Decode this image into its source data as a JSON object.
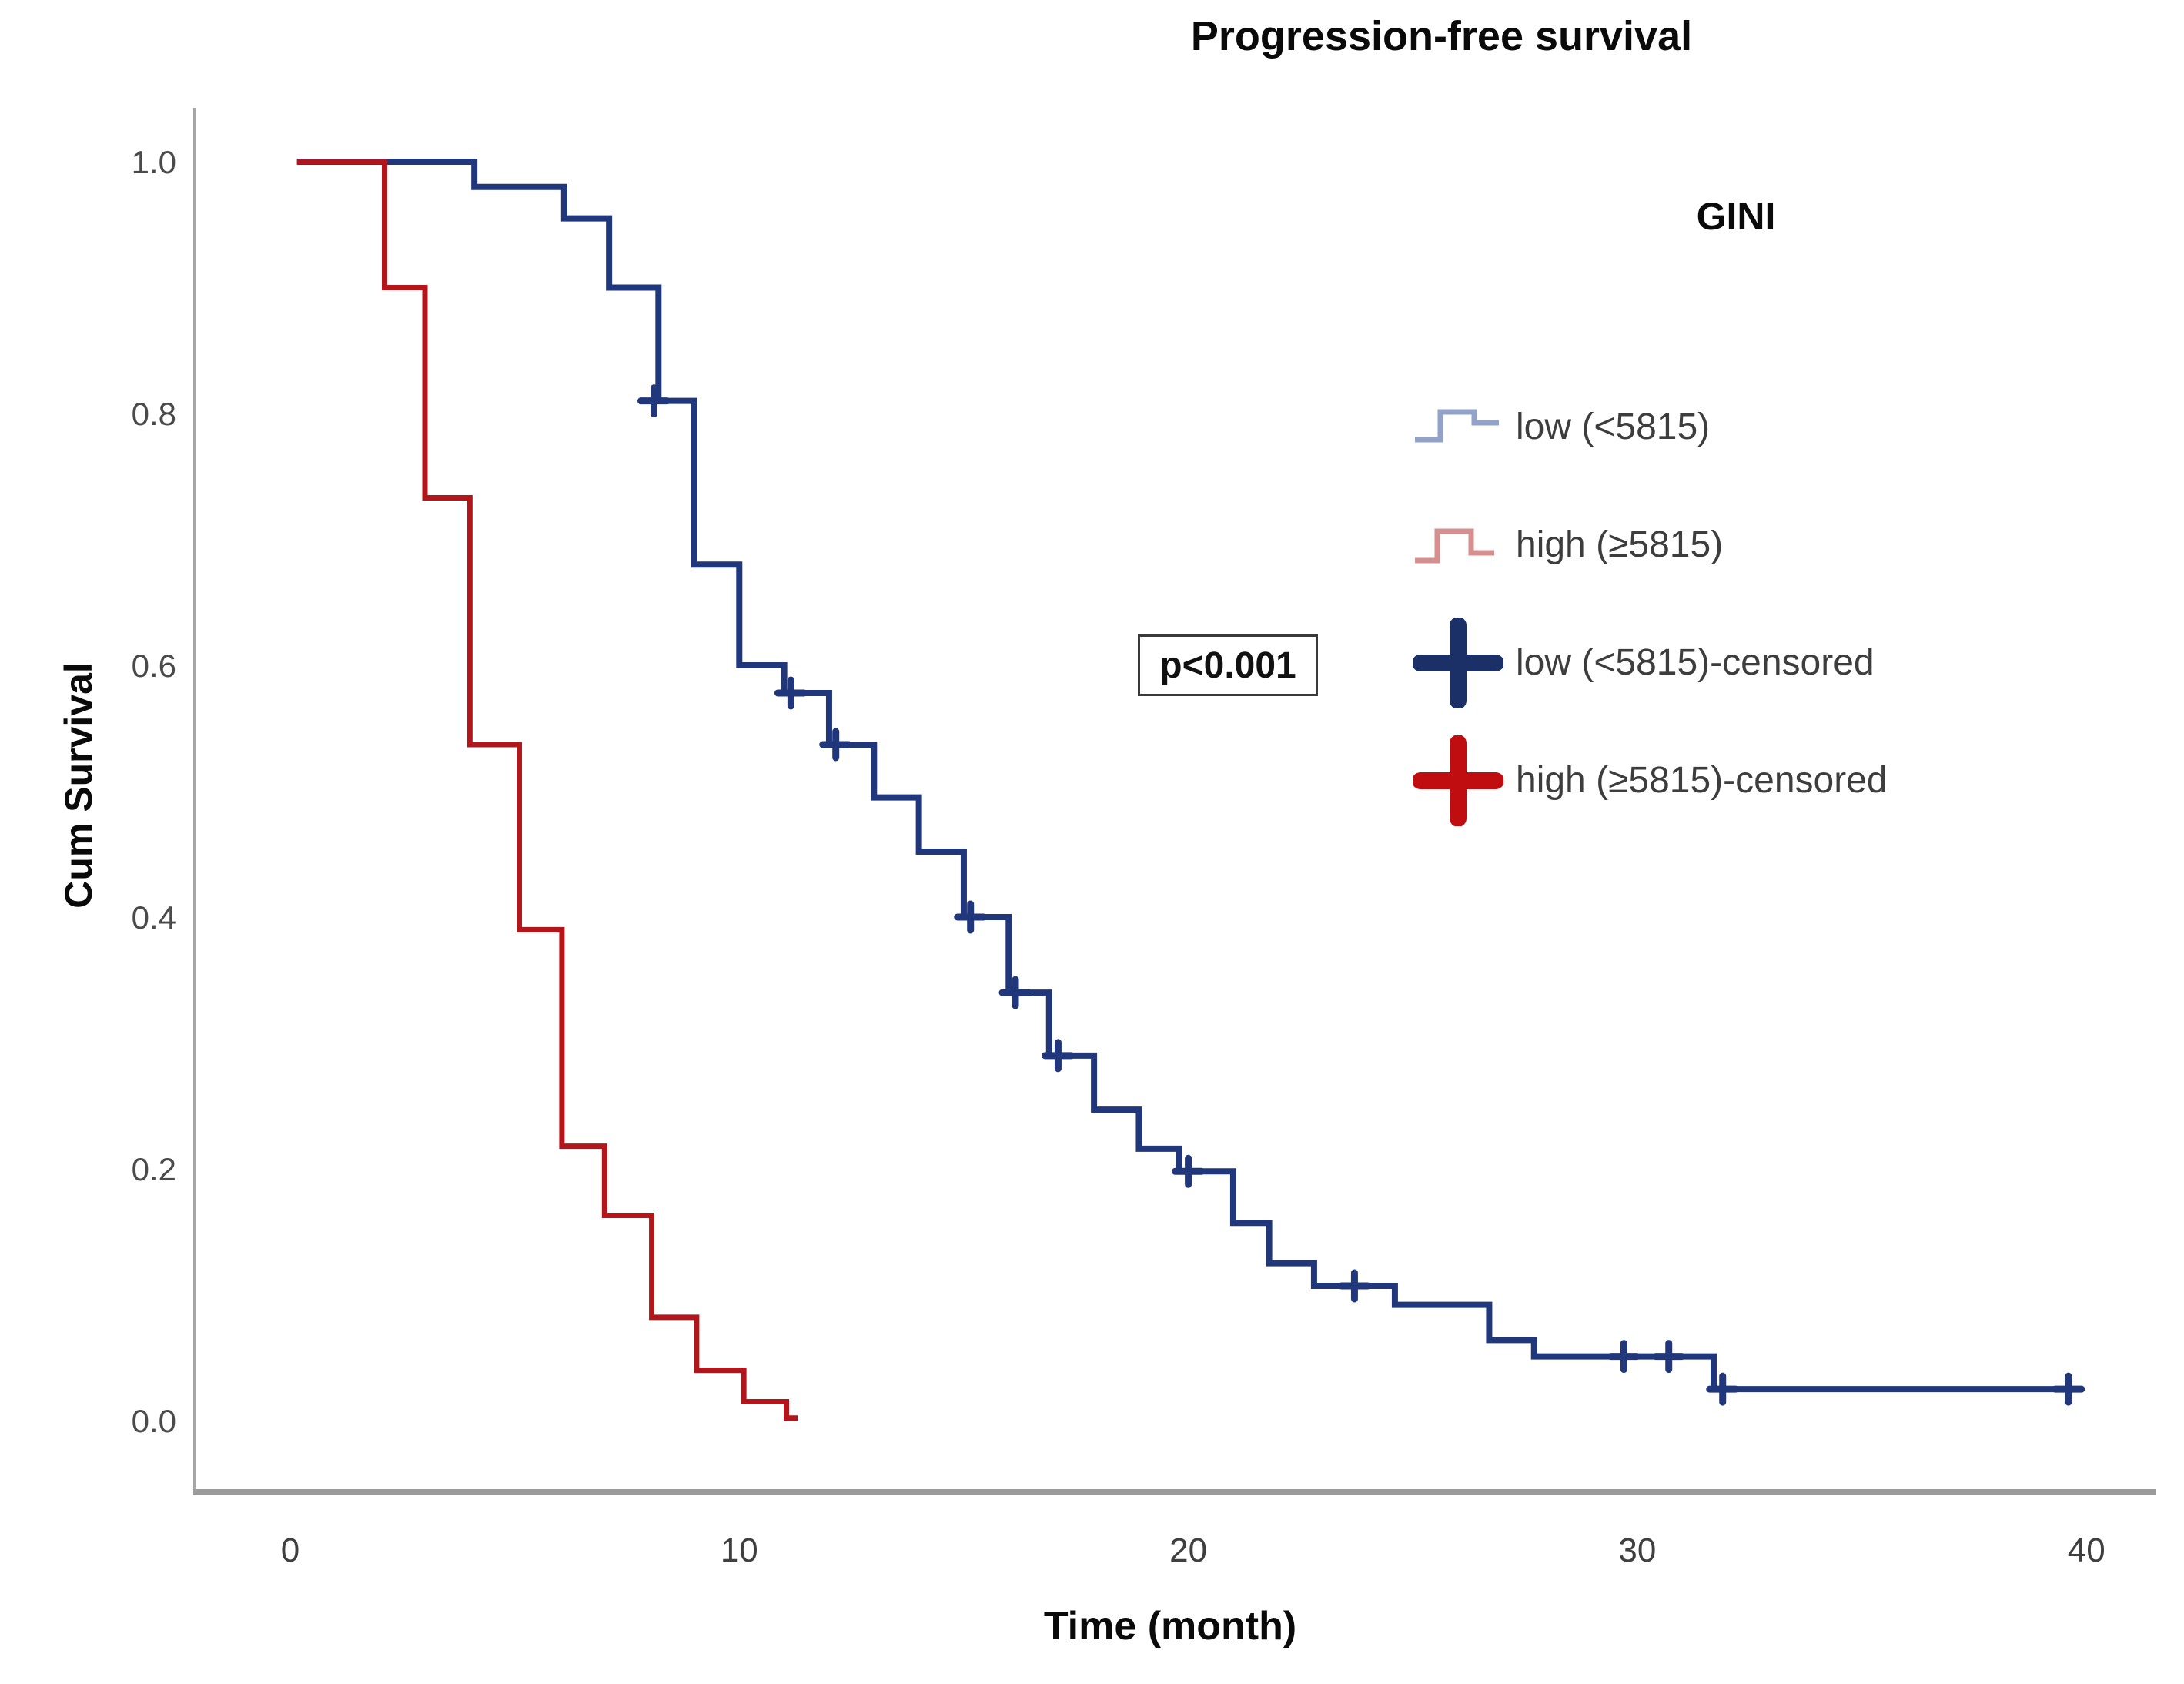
{
  "title": "Progression-free survival",
  "axes": {
    "y_label": "Cum Survival",
    "x_label": "Time (month)",
    "y_ticks": [
      {
        "label": "1.0",
        "value": 1.0
      },
      {
        "label": "0.8",
        "value": 0.8
      },
      {
        "label": "0.6",
        "value": 0.6
      },
      {
        "label": "0.4",
        "value": 0.4
      },
      {
        "label": "0.2",
        "value": 0.2
      },
      {
        "label": "0.0",
        "value": 0.0
      }
    ],
    "x_ticks": [
      {
        "label": "0",
        "value": 0
      },
      {
        "label": "10",
        "value": 10
      },
      {
        "label": "20",
        "value": 20
      },
      {
        "label": "30",
        "value": 30
      },
      {
        "label": "40",
        "value": 40
      }
    ]
  },
  "annotation": {
    "p_value": "p<0.001"
  },
  "legend": {
    "title": "GINI",
    "items": [
      {
        "label": "low (<5815)",
        "symbol": "step",
        "color": "#93a2c8"
      },
      {
        "label": "high (≥5815)",
        "symbol": "step",
        "color": "#d58f8e"
      },
      {
        "label": "low (<5815)-censored",
        "symbol": "plus",
        "color": "#1c3068"
      },
      {
        "label": "high (≥5815)-censored",
        "symbol": "plus",
        "color": "#c00d10"
      }
    ]
  },
  "colors": {
    "low_curve": "#21377b",
    "high_curve": "#b2161a",
    "axis": "#9b9b9b"
  },
  "chart_data": {
    "type": "line",
    "subtype": "kaplan_meier_step",
    "title": "Progression-free survival",
    "xlabel": "Time (month)",
    "ylabel": "Cum Survival",
    "xlim": [
      0,
      41.5
    ],
    "ylim": [
      0.0,
      1.0
    ],
    "grid": false,
    "legend_position": "upper right",
    "series": [
      {
        "name": "low (<5815)",
        "color": "#21377b",
        "start_t": 0.15,
        "start_level": 1.0,
        "drops": [
          [
            4.1,
            0.98
          ],
          [
            6.1,
            0.955
          ],
          [
            7.1,
            0.9
          ],
          [
            8.2,
            0.81
          ],
          [
            9.0,
            0.68
          ],
          [
            10.0,
            0.6
          ],
          [
            11.0,
            0.578
          ],
          [
            12.0,
            0.537
          ],
          [
            13.0,
            0.495
          ],
          [
            14.0,
            0.452
          ],
          [
            15.0,
            0.4
          ],
          [
            16.0,
            0.34
          ],
          [
            16.9,
            0.29
          ],
          [
            17.9,
            0.247
          ],
          [
            18.9,
            0.216
          ],
          [
            19.8,
            0.198
          ],
          [
            21.0,
            0.157
          ],
          [
            21.8,
            0.125
          ],
          [
            22.8,
            0.107
          ],
          [
            24.6,
            0.092
          ],
          [
            26.7,
            0.064
          ],
          [
            27.7,
            0.051
          ],
          [
            31.7,
            0.025
          ]
        ],
        "end_t": 39.7,
        "censored": [
          [
            8.1,
            0.81
          ],
          [
            11.15,
            0.578
          ],
          [
            12.15,
            0.537
          ],
          [
            15.15,
            0.4
          ],
          [
            16.15,
            0.34
          ],
          [
            17.1,
            0.29
          ],
          [
            20.0,
            0.198
          ],
          [
            23.7,
            0.107
          ],
          [
            29.7,
            0.051
          ],
          [
            30.7,
            0.051
          ],
          [
            31.9,
            0.025
          ],
          [
            39.6,
            0.025
          ]
        ]
      },
      {
        "name": "high (≥5815)",
        "color": "#b2161a",
        "start_t": 0.15,
        "start_level": 1.0,
        "drops": [
          [
            2.1,
            0.9
          ],
          [
            3.0,
            0.733
          ],
          [
            4.0,
            0.537
          ],
          [
            5.1,
            0.39
          ],
          [
            6.05,
            0.218
          ],
          [
            7.0,
            0.163
          ],
          [
            8.05,
            0.082
          ],
          [
            9.05,
            0.04
          ],
          [
            10.1,
            0.015
          ],
          [
            11.05,
            0.002
          ]
        ],
        "end_t": 11.3,
        "censored": []
      }
    ],
    "annotations": [
      {
        "text": "p<0.001",
        "x_month": 20.9,
        "y_survival": 0.6
      }
    ]
  }
}
